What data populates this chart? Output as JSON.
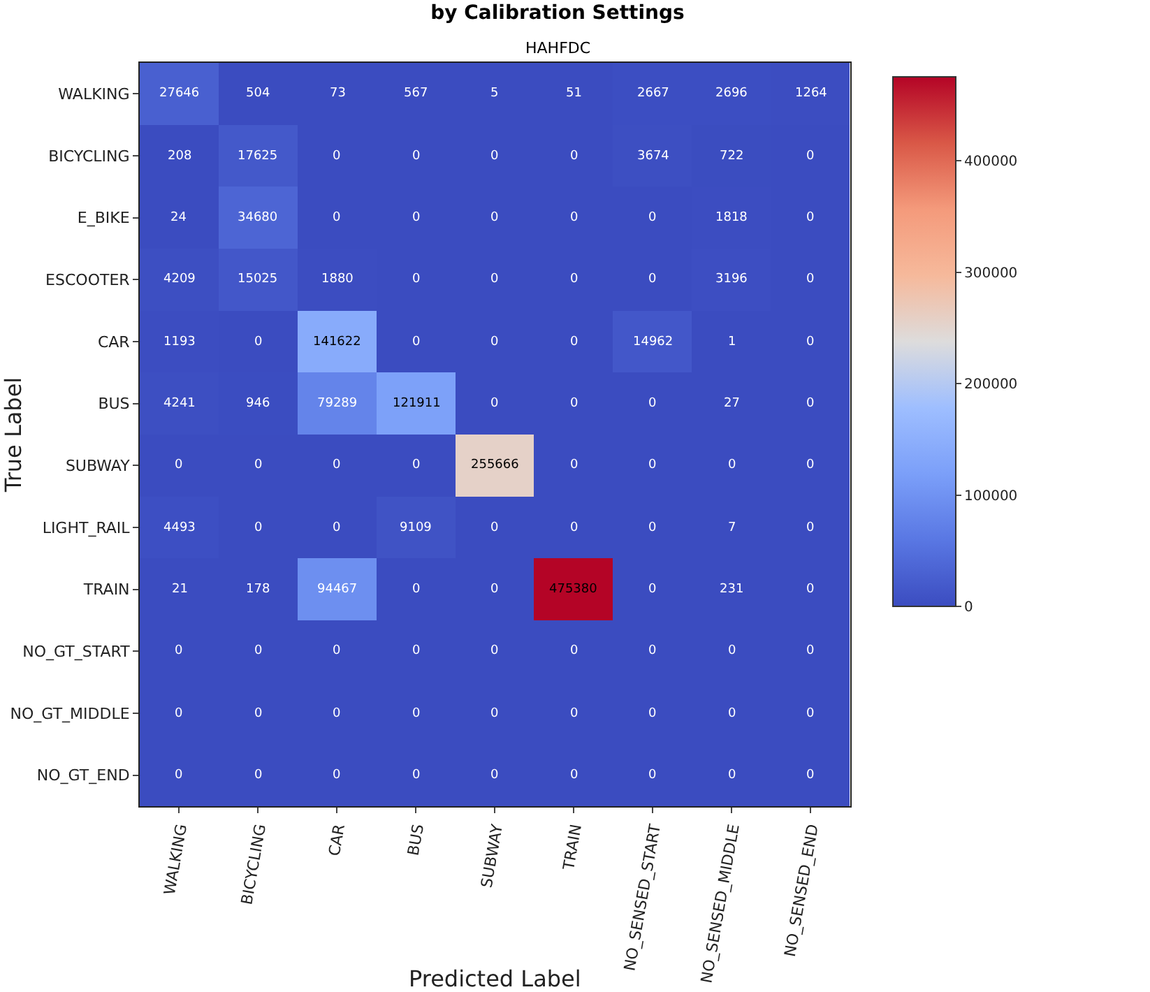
{
  "chart_data": {
    "type": "heatmap",
    "title": "by Calibration Settings",
    "subtitle": "HAHFDC",
    "xlabel": "Predicted Label",
    "ylabel": "True Label",
    "categories": [
      "WALKING",
      "BICYCLING",
      "CAR",
      "BUS",
      "SUBWAY",
      "TRAIN",
      "NO_SENSED_START",
      "NO_SENSED_MIDDLE",
      "NO_SENSED_END"
    ],
    "y_categories": [
      "WALKING",
      "BICYCLING",
      "E_BIKE",
      "ESCOOTER",
      "CAR",
      "BUS",
      "SUBWAY",
      "LIGHT_RAIL",
      "TRAIN",
      "NO_GT_START",
      "NO_GT_MIDDLE",
      "NO_GT_END"
    ],
    "cells": [
      [
        27646,
        504,
        73,
        567,
        5,
        51,
        2667,
        2696,
        1264
      ],
      [
        208,
        17625,
        0,
        0,
        0,
        0,
        3674,
        722,
        0
      ],
      [
        24,
        34680,
        0,
        0,
        0,
        0,
        0,
        1818,
        0
      ],
      [
        4209,
        15025,
        1880,
        0,
        0,
        0,
        0,
        3196,
        0
      ],
      [
        1193,
        0,
        141622,
        0,
        0,
        0,
        14962,
        1,
        0
      ],
      [
        4241,
        946,
        79289,
        121911,
        0,
        0,
        0,
        27,
        0
      ],
      [
        0,
        0,
        0,
        0,
        255666,
        0,
        0,
        0,
        0
      ],
      [
        4493,
        0,
        0,
        9109,
        0,
        0,
        0,
        7,
        0
      ],
      [
        21,
        178,
        94467,
        0,
        0,
        475380,
        0,
        231,
        0
      ],
      [
        0,
        0,
        0,
        0,
        0,
        0,
        0,
        0,
        0
      ],
      [
        0,
        0,
        0,
        0,
        0,
        0,
        0,
        0,
        0
      ],
      [
        0,
        0,
        0,
        0,
        0,
        0,
        0,
        0,
        0
      ]
    ],
    "data_labels": true,
    "clim": [
      0,
      475380
    ],
    "cticks": [
      0,
      100000,
      200000,
      300000,
      400000
    ]
  }
}
